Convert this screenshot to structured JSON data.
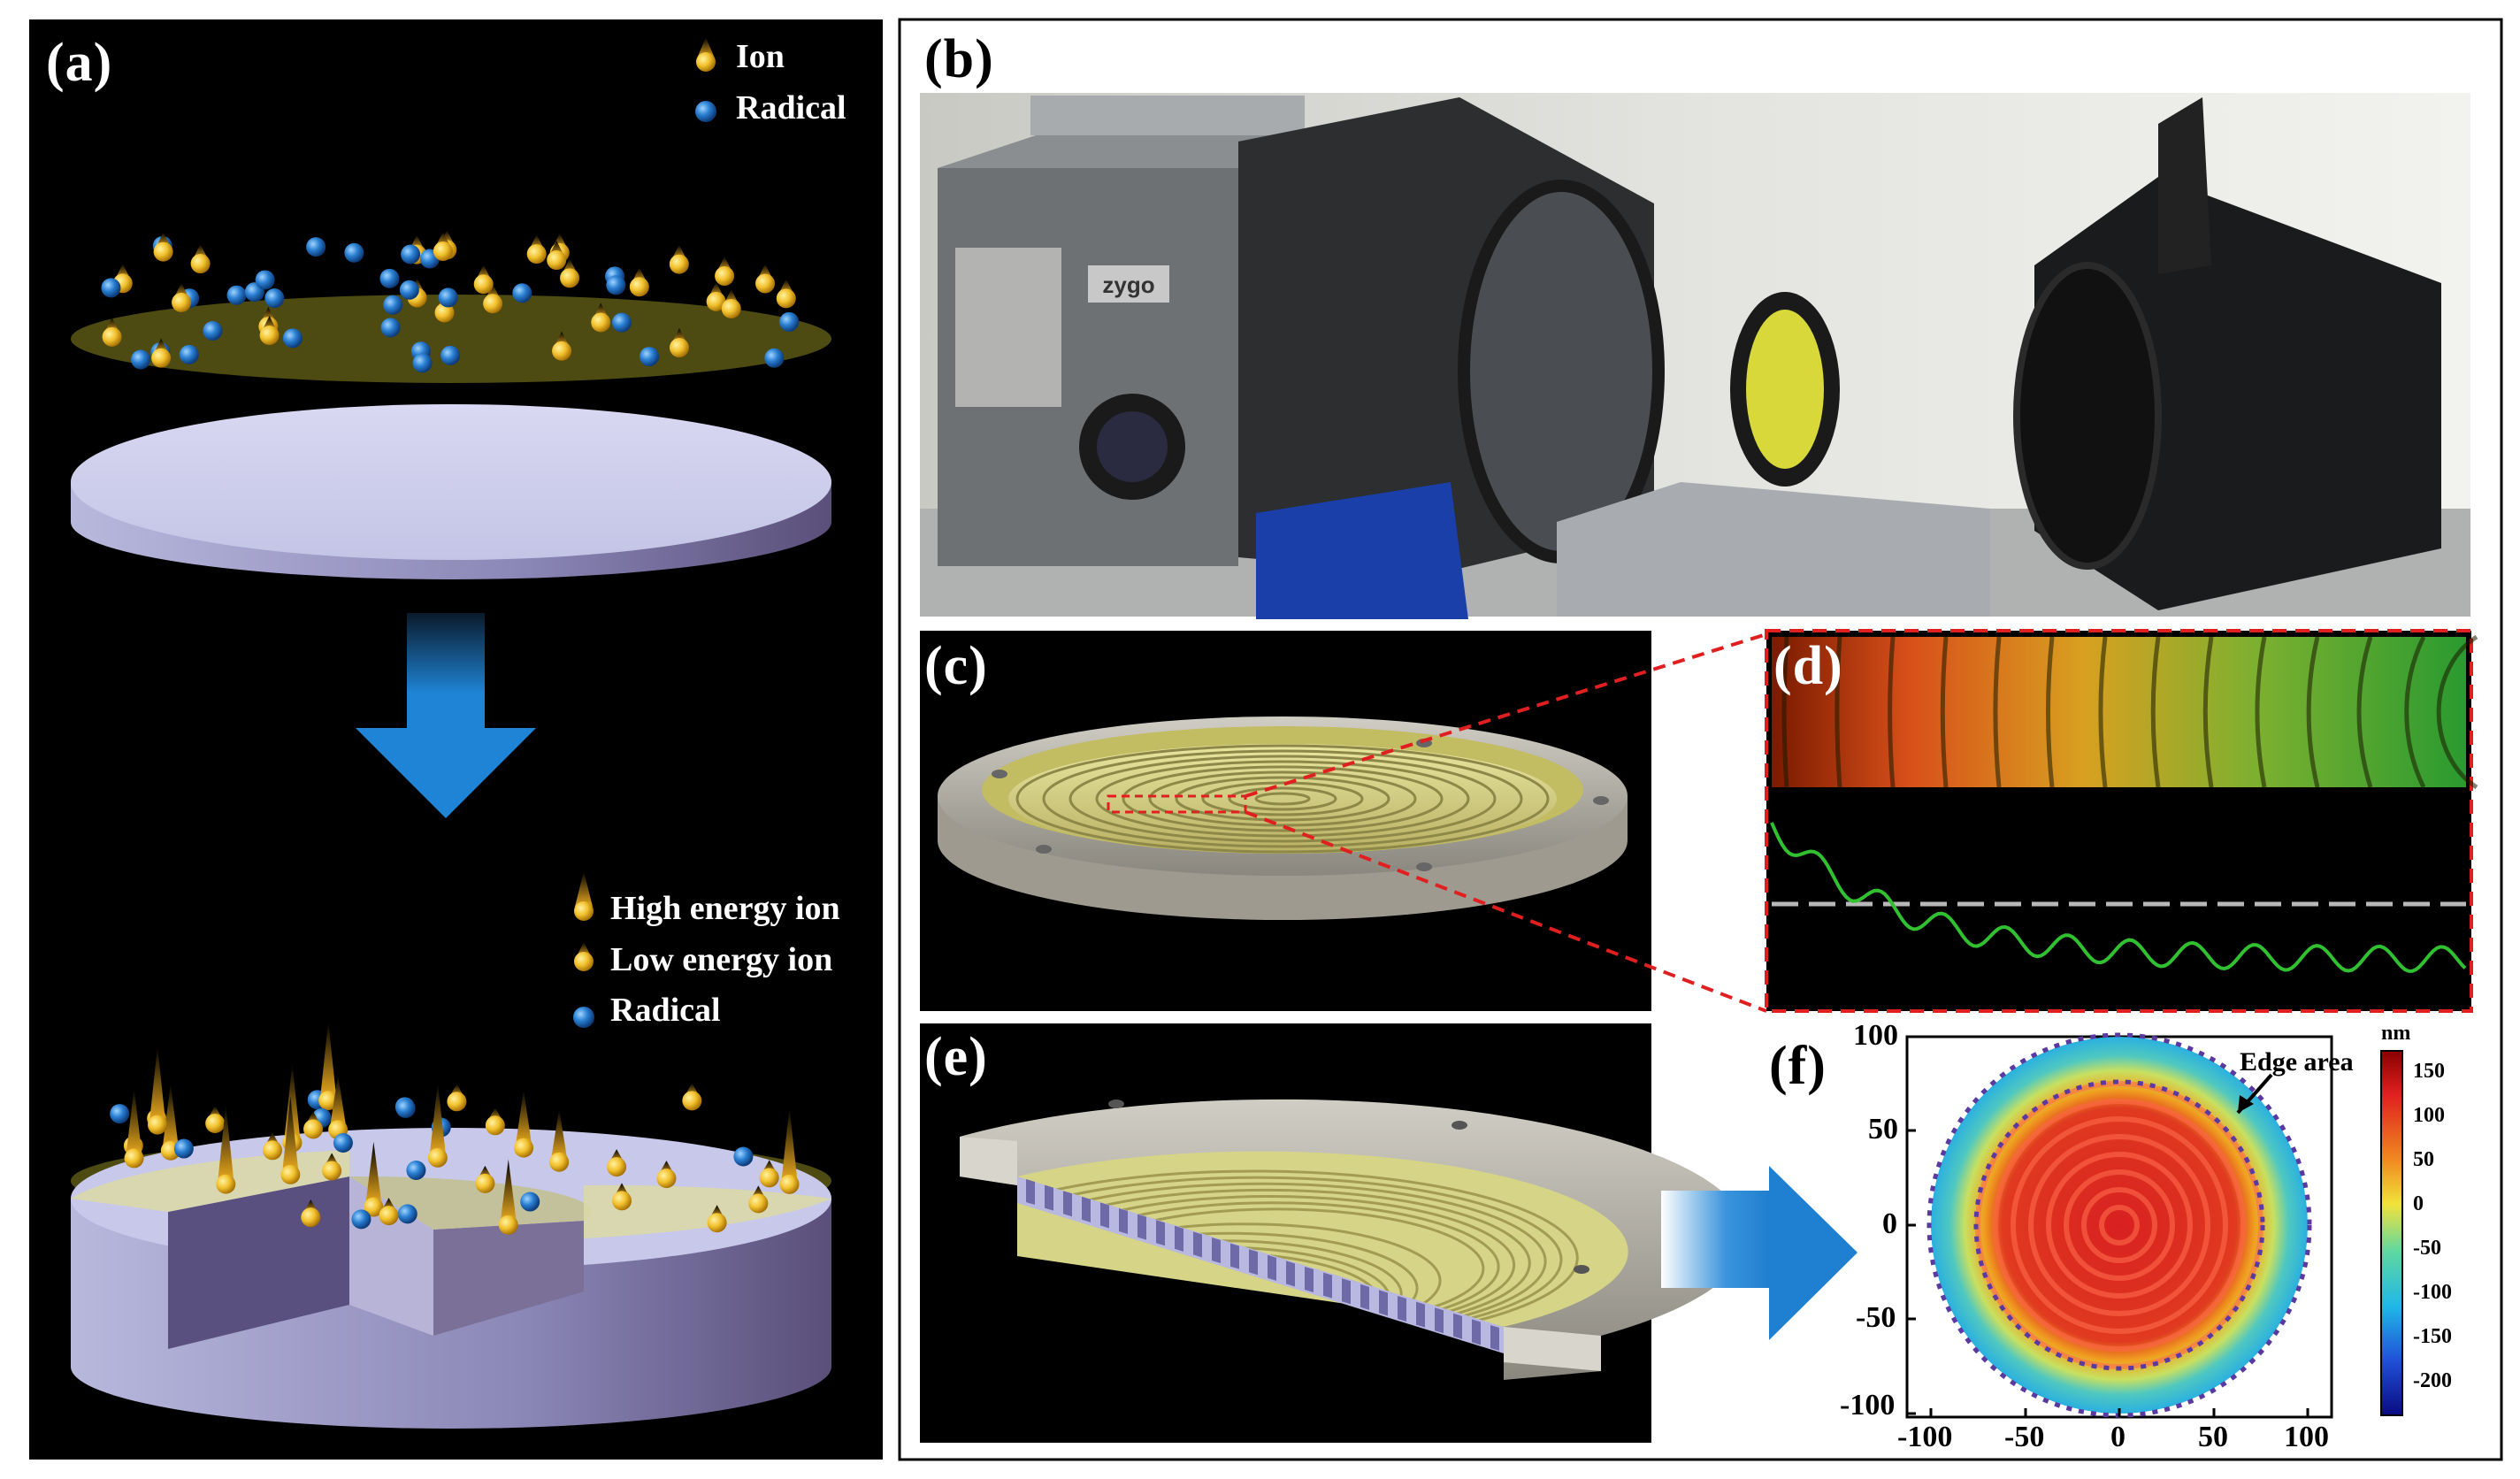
{
  "panels": {
    "a": {
      "label": "(a)",
      "legend_top": [
        {
          "text": "Ion",
          "icon": "ion-icon"
        },
        {
          "text": "Radical",
          "icon": "radical-icon"
        }
      ],
      "legend_bottom": [
        {
          "text": "High energy ion",
          "icon": "high-energy-ion-icon"
        },
        {
          "text": "Low energy ion",
          "icon": "low-energy-ion-icon"
        },
        {
          "text": "Radical",
          "icon": "radical-icon"
        }
      ]
    },
    "b": {
      "label": "(b)",
      "brand_text": "zygo"
    },
    "c": {
      "label": "(c)"
    },
    "d": {
      "label": "(d)"
    },
    "e": {
      "label": "(e)"
    },
    "f": {
      "label": "(f)",
      "annotation": "Edge area",
      "unit": "nm",
      "x_ticks": [
        "-100",
        "-50",
        "0",
        "50",
        "100"
      ],
      "y_ticks": [
        "100",
        "50",
        "0",
        "-50",
        "-100"
      ],
      "colorbar_ticks": [
        "150",
        "100",
        "50",
        "0",
        "-50",
        "-100",
        "-150",
        "-200"
      ]
    }
  },
  "colors": {
    "ion": "#f2c12e",
    "radical": "#1f73c8",
    "arrow": "#1f84d6",
    "film": "#5a5a1a",
    "dashed_red": "#e02020",
    "dashed_purple": "#5a3aa0"
  }
}
